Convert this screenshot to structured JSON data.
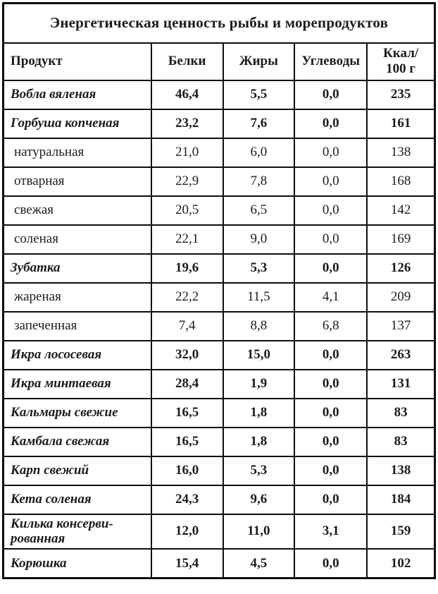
{
  "table": {
    "title": "Энергетическая ценность рыбы и морепродуктов",
    "columns": {
      "product": "Продукт",
      "protein": "Белки",
      "fat": "Жиры",
      "carbs": "Углеводы",
      "kcal": "Ккал/\n100 г"
    },
    "rows": [
      {
        "product": "Вобла вяленая",
        "protein": "46,4",
        "fat": "5,5",
        "carbs": "0,0",
        "kcal": "235",
        "emphasis": "bold"
      },
      {
        "product": "Горбуша копченая",
        "protein": "23,2",
        "fat": "7,6",
        "carbs": "0,0",
        "kcal": "161",
        "emphasis": "bold"
      },
      {
        "product": "натуральная",
        "protein": "21,0",
        "fat": "6,0",
        "carbs": "0,0",
        "kcal": "138",
        "emphasis": "normal"
      },
      {
        "product": "отварная",
        "protein": "22,9",
        "fat": "7,8",
        "carbs": "0,0",
        "kcal": "168",
        "emphasis": "normal"
      },
      {
        "product": "свежая",
        "protein": "20,5",
        "fat": "6,5",
        "carbs": "0,0",
        "kcal": "142",
        "emphasis": "normal"
      },
      {
        "product": "соленая",
        "protein": "22,1",
        "fat": "9,0",
        "carbs": "0,0",
        "kcal": "169",
        "emphasis": "normal"
      },
      {
        "product": "Зубатка",
        "protein": "19,6",
        "fat": "5,3",
        "carbs": "0,0",
        "kcal": "126",
        "emphasis": "bold"
      },
      {
        "product": "жареная",
        "protein": "22,2",
        "fat": "11,5",
        "carbs": "4,1",
        "kcal": "209",
        "emphasis": "normal"
      },
      {
        "product": "запеченная",
        "protein": "7,4",
        "fat": "8,8",
        "carbs": "6,8",
        "kcal": "137",
        "emphasis": "normal"
      },
      {
        "product": "Икра лососевая",
        "protein": "32,0",
        "fat": "15,0",
        "carbs": "0,0",
        "kcal": "263",
        "emphasis": "bold"
      },
      {
        "product": "Икра минтаевая",
        "protein": "28,4",
        "fat": "1,9",
        "carbs": "0,0",
        "kcal": "131",
        "emphasis": "bold"
      },
      {
        "product": "Кальмары свежие",
        "protein": "16,5",
        "fat": "1,8",
        "carbs": "0,0",
        "kcal": "83",
        "emphasis": "bold"
      },
      {
        "product": "Камбала свежая",
        "protein": "16,5",
        "fat": "1,8",
        "carbs": "0,0",
        "kcal": "83",
        "emphasis": "bold"
      },
      {
        "product": "Карп свежий",
        "protein": "16,0",
        "fat": "5,3",
        "carbs": "0,0",
        "kcal": "138",
        "emphasis": "bold"
      },
      {
        "product": "Кета соленая",
        "protein": "24,3",
        "fat": "9,6",
        "carbs": "0,0",
        "kcal": "184",
        "emphasis": "bold"
      },
      {
        "product": "Килька консерви-\nрованная",
        "protein": "12,0",
        "fat": "11,0",
        "carbs": "3,1",
        "kcal": "159",
        "emphasis": "bold"
      },
      {
        "product": "Корюшка",
        "protein": "15,4",
        "fat": "4,5",
        "carbs": "0,0",
        "kcal": "102",
        "emphasis": "bold"
      }
    ]
  }
}
